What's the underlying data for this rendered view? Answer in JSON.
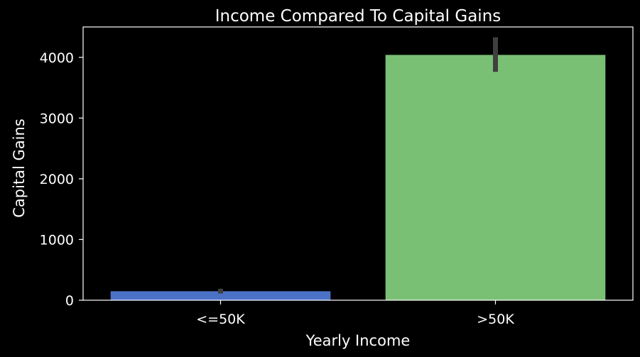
{
  "chart_data": {
    "type": "bar",
    "title": "Income Compared To Capital Gains",
    "xlabel": "Yearly Income",
    "ylabel": "Capital Gains",
    "categories": [
      "<=50K",
      ">50K"
    ],
    "values": [
      148,
      4040
    ],
    "error_bars": [
      [
        110,
        190
      ],
      [
        3760,
        4330
      ]
    ],
    "ylim": [
      0,
      4500
    ],
    "yticks": [
      0,
      1000,
      2000,
      3000,
      4000
    ],
    "grid": false,
    "legend": "none",
    "colors": [
      "#4c72c7",
      "#7ac074"
    ],
    "error_bar_color": "#3f3f3f",
    "axes_color": "#ffffff",
    "background": "#000000"
  }
}
